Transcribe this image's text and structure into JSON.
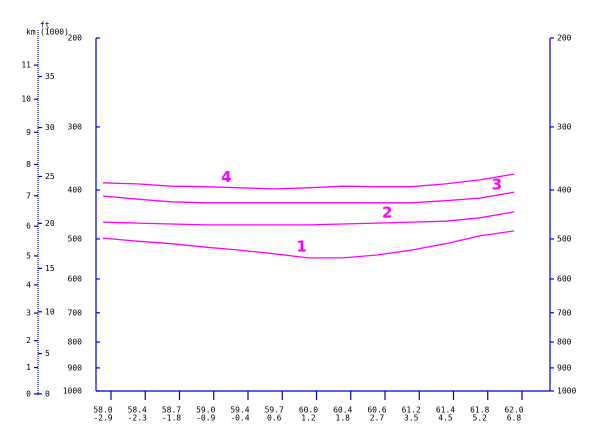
{
  "chart_data": {
    "type": "line",
    "categories": [
      "58.0",
      "58.4",
      "58.7",
      "59.0",
      "59.4",
      "59.7",
      "60.0",
      "60.4",
      "60.6",
      "61.2",
      "61.4",
      "61.8",
      "62.0"
    ],
    "categories_row2": [
      "-2.9",
      "-2.3",
      "-1.8",
      "-0.9",
      "-0.4",
      "0.6",
      "1.2",
      "1.8",
      "2.7",
      "3.5",
      "4.5",
      "5.2",
      "6.8"
    ],
    "ylim": [
      1000,
      200
    ],
    "yscale": "log",
    "yticks": [
      200,
      300,
      400,
      500,
      600,
      700,
      800,
      900,
      1000
    ],
    "km_label": "km",
    "ft_label": "ft",
    "ft_unit": "(1000)",
    "km_ticks": [
      0,
      1,
      2,
      3,
      4,
      5,
      6,
      7,
      8,
      9,
      10,
      11
    ],
    "ft_ticks": [
      0,
      5,
      10,
      15,
      20,
      25,
      30,
      35
    ],
    "series": [
      {
        "name": "1",
        "color": "#ff00ff",
        "values": [
          498,
          505,
          511,
          519,
          526,
          535,
          545,
          545,
          538,
          526,
          511,
          493,
          482
        ]
      },
      {
        "name": "2",
        "color": "#ff00ff",
        "values": [
          463,
          465,
          467,
          469,
          469,
          469,
          469,
          467,
          465,
          463,
          461,
          454,
          442
        ]
      },
      {
        "name": "3",
        "color": "#ff00ff",
        "values": [
          411,
          417,
          422,
          424,
          424,
          424,
          424,
          424,
          424,
          424,
          420,
          415,
          404
        ]
      },
      {
        "name": "4",
        "color": "#ff00ff",
        "values": [
          387,
          389,
          393,
          394,
          396,
          398,
          396,
          393,
          394,
          394,
          389,
          382,
          372
        ]
      }
    ]
  }
}
